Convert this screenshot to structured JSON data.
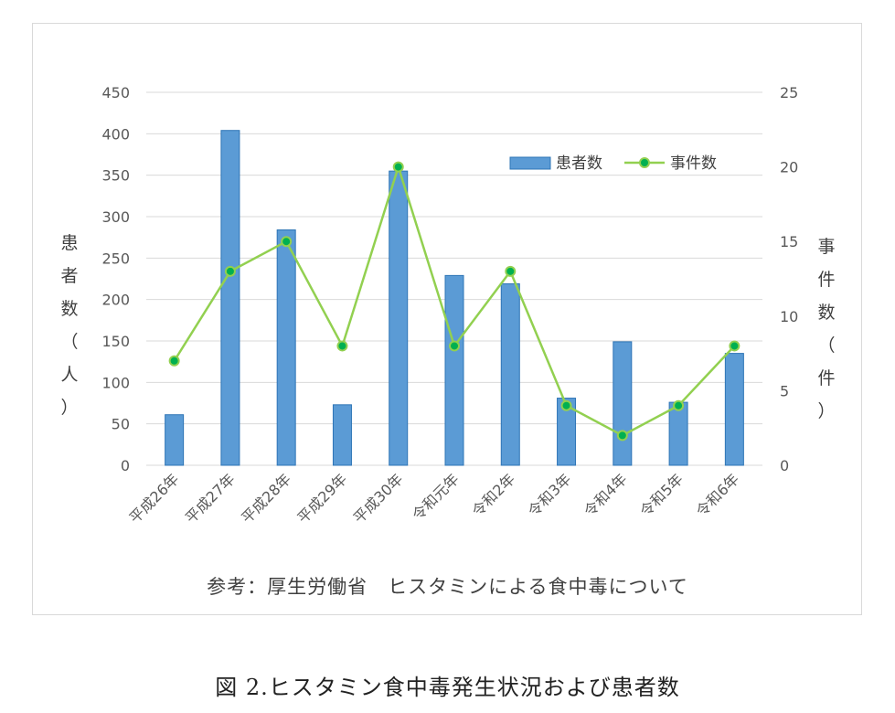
{
  "chart_data": {
    "type": "bar",
    "categories": [
      "平成26年",
      "平成27年",
      "平成28年",
      "平成29年",
      "平成30年",
      "令和元年",
      "令和2年",
      "令和3年",
      "令和4年",
      "令和5年",
      "令和6年"
    ],
    "series": [
      {
        "name": "患者数",
        "type": "bar",
        "axis": "left",
        "values": [
          61,
          404,
          284,
          73,
          355,
          229,
          219,
          81,
          149,
          76,
          135
        ]
      },
      {
        "name": "事件数",
        "type": "line",
        "axis": "right",
        "values": [
          7,
          13,
          15,
          8,
          20,
          8,
          13,
          4,
          2,
          4,
          8
        ]
      }
    ],
    "ylabel": "患者数（人）",
    "y2label": "事件数（件）",
    "ylim": [
      0,
      450
    ],
    "yticks": [
      "0",
      "50",
      "100",
      "150",
      "200",
      "250",
      "300",
      "350",
      "400",
      "450"
    ],
    "y2lim": [
      0,
      25
    ],
    "y2ticks": [
      "0",
      "5",
      "10",
      "15",
      "20",
      "25"
    ],
    "grid": true,
    "legend_position": "top-right",
    "colors": {
      "bar": "#5b9bd5",
      "bar_edge": "#2e75b6",
      "line": "#92d050",
      "marker_fill": "#00b050",
      "grid": "#d9d9d9"
    }
  },
  "source_note": "参考：厚生労働省　ヒスタミンによる食中毒について",
  "caption": "図 2.ヒスタミン食中毒発生状況および患者数"
}
